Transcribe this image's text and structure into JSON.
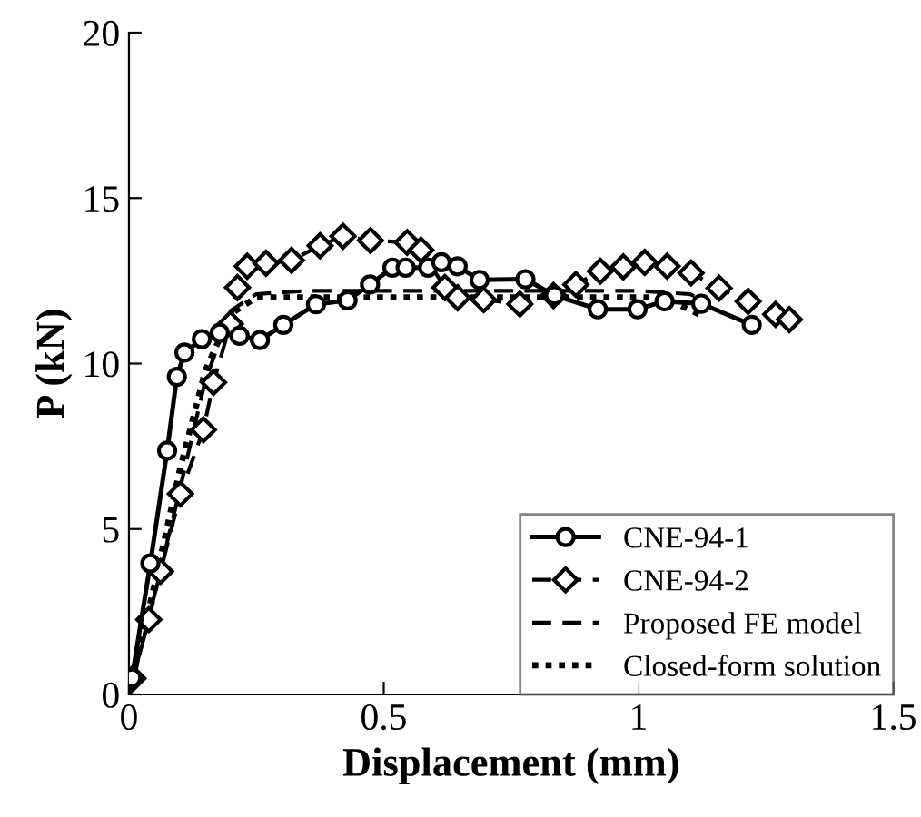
{
  "chart_data": {
    "type": "line",
    "xlabel": "Displacement (mm)",
    "ylabel": "P (kN)",
    "xlim": [
      0,
      1.5
    ],
    "ylim": [
      0,
      20
    ],
    "xticks": [
      0,
      0.5,
      1,
      1.5
    ],
    "yticks": [
      0,
      5,
      10,
      15,
      20
    ],
    "grid": false,
    "legend": "bottom right",
    "series": [
      {
        "name": "CNE-94-1",
        "color": "#000000",
        "marker": "circle",
        "line_style": "solid",
        "x": [
          0.006,
          0.042,
          0.075,
          0.094,
          0.109,
          0.143,
          0.178,
          0.217,
          0.257,
          0.303,
          0.367,
          0.429,
          0.473,
          0.517,
          0.543,
          0.587,
          0.613,
          0.645,
          0.688,
          0.778,
          0.835,
          0.92,
          0.998,
          1.051,
          1.123,
          1.222
        ],
        "values": [
          0.5,
          3.96,
          7.37,
          9.6,
          10.33,
          10.74,
          10.93,
          10.84,
          10.71,
          11.17,
          11.79,
          11.91,
          12.39,
          12.9,
          12.9,
          12.9,
          13.06,
          12.94,
          12.53,
          12.55,
          12.06,
          11.64,
          11.64,
          11.88,
          11.81,
          11.17
        ]
      },
      {
        "name": "CNE-94-2",
        "color": "#000000",
        "marker": "diamond",
        "line_style": "dashed",
        "x": [
          0.008,
          0.039,
          0.062,
          0.101,
          0.146,
          0.166,
          0.199,
          0.213,
          0.232,
          0.269,
          0.319,
          0.375,
          0.42,
          0.474,
          0.546,
          0.573,
          0.62,
          0.645,
          0.696,
          0.767,
          0.833,
          0.877,
          0.925,
          0.97,
          1.012,
          1.056,
          1.103,
          1.158,
          1.215,
          1.269,
          1.296
        ],
        "values": [
          0.49,
          2.26,
          3.72,
          6.06,
          8.0,
          9.43,
          11.2,
          12.3,
          12.94,
          13.03,
          13.12,
          13.56,
          13.85,
          13.72,
          13.66,
          13.43,
          12.3,
          11.99,
          11.93,
          11.8,
          12.06,
          12.39,
          12.79,
          12.92,
          13.06,
          12.94,
          12.74,
          12.28,
          11.88,
          11.49,
          11.33
        ]
      },
      {
        "name": "Proposed FE model",
        "color": "#000000",
        "marker": "none",
        "line_style": "dashed",
        "x": [
          0,
          0.05,
          0.1,
          0.15,
          0.2,
          0.25,
          0.35,
          1.0,
          1.1,
          1.13
        ],
        "values": [
          0,
          3.0,
          6.2,
          9.5,
          11.6,
          12.1,
          12.2,
          12.2,
          12.1,
          11.9
        ]
      },
      {
        "name": "Closed-form solution",
        "color": "#000000",
        "marker": "none",
        "line_style": "dotted",
        "x": [
          0,
          0.05,
          0.1,
          0.15,
          0.2,
          0.25,
          1.05,
          1.13
        ],
        "values": [
          0,
          3.3,
          6.8,
          9.8,
          11.5,
          12.0,
          12.0,
          11.4
        ]
      }
    ]
  }
}
